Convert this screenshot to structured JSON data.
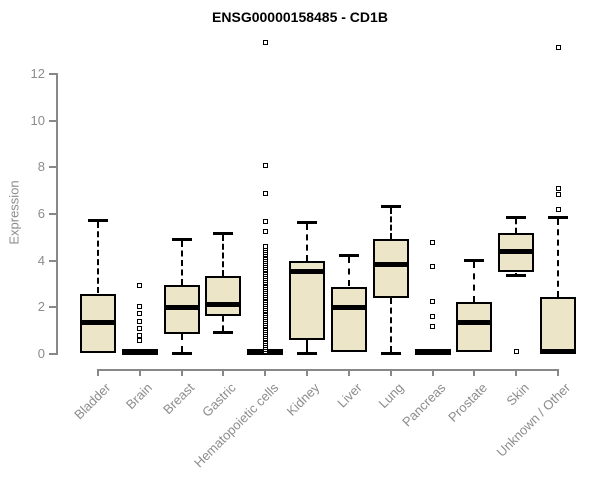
{
  "title": "ENSG00000158485 - CD1B",
  "ylabel": "Expression",
  "colors": {
    "box_fill": "#ece5c8",
    "box_border": "#000000",
    "axis": "#888888",
    "tick_text": "#8c8c8c",
    "title_text": "#000000"
  },
  "chart_data": {
    "type": "boxplot",
    "title": "ENSG00000158485 - CD1B",
    "xlabel": "",
    "ylabel": "Expression",
    "ylim": [
      0,
      13.4
    ],
    "yticks": [
      0,
      2,
      4,
      6,
      8,
      10,
      12
    ],
    "grid": false,
    "legend": "none",
    "categories": [
      "Bladder",
      "Brain",
      "Breast",
      "Gastric",
      "Hematopoietic cells",
      "Kidney",
      "Liver",
      "Lung",
      "Pancreas",
      "Prostate",
      "Skin",
      "Unknown / Other"
    ],
    "boxes": [
      {
        "name": "Bladder",
        "low": null,
        "q1": 0,
        "med": 1.3,
        "q3": 2.55,
        "high": 5.7,
        "outliers": []
      },
      {
        "name": "Brain",
        "low": null,
        "q1": 0,
        "med": 0.05,
        "q3": 0.1,
        "high": null,
        "outliers": [
          2.9,
          2.0,
          1.7,
          1.35,
          1.05,
          0.75,
          0.55
        ]
      },
      {
        "name": "Breast",
        "low": 0,
        "q1": 0.8,
        "med": 1.95,
        "q3": 2.9,
        "high": 4.9,
        "outliers": []
      },
      {
        "name": "Gastric",
        "low": 0.9,
        "q1": 1.6,
        "med": 2.1,
        "q3": 3.3,
        "high": 5.15,
        "outliers": []
      },
      {
        "name": "Hematopoietic cells",
        "low": null,
        "q1": 0,
        "med": 0.05,
        "q3": 0.1,
        "high": null,
        "outliers": [
          5.2,
          5.65,
          6.85,
          8.05,
          13.3
        ],
        "dense_outlier_range": [
          0.08,
          4.63
        ]
      },
      {
        "name": "Kidney",
        "low": 0,
        "q1": 0.55,
        "med": 3.5,
        "q3": 3.95,
        "high": 5.6,
        "outliers": []
      },
      {
        "name": "Liver",
        "low": null,
        "q1": 0.05,
        "med": 1.95,
        "q3": 2.85,
        "high": 4.2,
        "outliers": []
      },
      {
        "name": "Lung",
        "low": 0,
        "q1": 2.35,
        "med": 3.8,
        "q3": 4.9,
        "high": 6.3,
        "outliers": []
      },
      {
        "name": "Pancreas",
        "low": null,
        "q1": 0,
        "med": 0.05,
        "q3": 0.1,
        "high": null,
        "outliers": [
          4.75,
          3.7,
          2.2,
          1.55,
          1.15
        ]
      },
      {
        "name": "Prostate",
        "low": null,
        "q1": 0.05,
        "med": 1.3,
        "q3": 2.2,
        "high": 4.0,
        "outliers": []
      },
      {
        "name": "Skin",
        "low": 3.35,
        "q1": 3.45,
        "med": 4.35,
        "q3": 5.15,
        "high": 5.85,
        "outliers": [
          0.05
        ]
      },
      {
        "name": "Unknown / Other",
        "low": null,
        "q1": 0,
        "med": 0.07,
        "q3": 2.4,
        "high": 5.85,
        "outliers": [
          6.15,
          6.8,
          7.05,
          13.1
        ]
      }
    ]
  }
}
